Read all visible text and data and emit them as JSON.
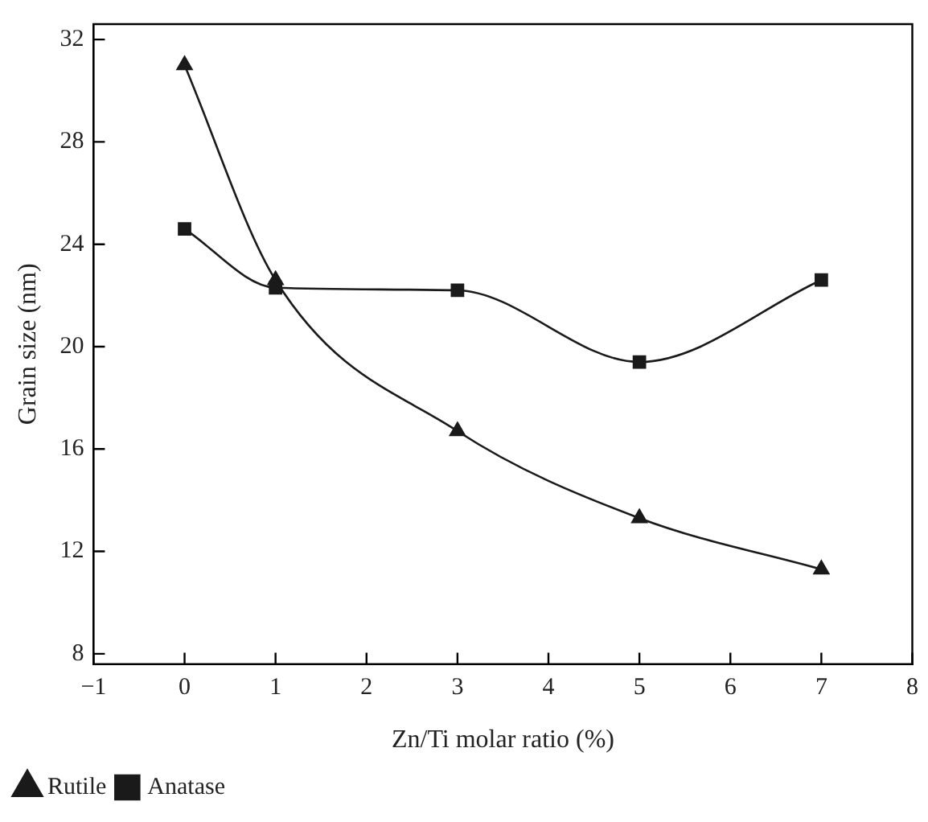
{
  "chart_data": {
    "type": "line",
    "xlabel": "Zn/Ti molar ratio (%)",
    "ylabel": "Grain size (nm)",
    "x": [
      0,
      1,
      3,
      5,
      7
    ],
    "series": [
      {
        "name": "Rutile",
        "color": "#1a1a1a",
        "marker": "triangle",
        "values": [
          31.0,
          22.6,
          16.7,
          13.3,
          11.3
        ]
      },
      {
        "name": "Anatase",
        "color": "#1a1a1a",
        "marker": "square",
        "values": [
          24.6,
          22.3,
          22.2,
          19.4,
          22.6
        ]
      }
    ],
    "xlim": [
      -1,
      8
    ],
    "xticks": [
      {
        "value": -1,
        "label": "−1"
      },
      0,
      1,
      2,
      3,
      4,
      5,
      6,
      7,
      8
    ],
    "ylim": [
      7.6,
      32.6
    ],
    "yticks": [
      8,
      12,
      16,
      20,
      24,
      28,
      32
    ],
    "grid": false,
    "legend": "bottom left",
    "line_style": "solid"
  }
}
